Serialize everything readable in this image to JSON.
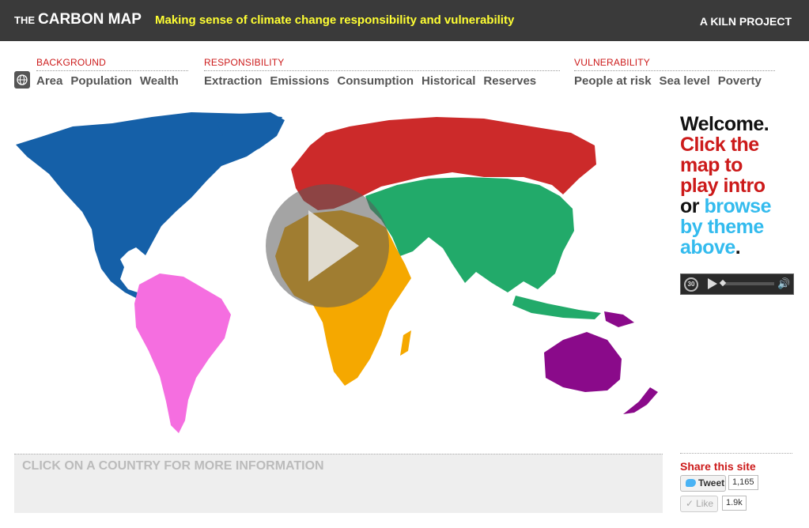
{
  "header": {
    "the": "THE",
    "title": "CARBON MAP",
    "tagline": "Making sense of climate change responsibility and vulnerability",
    "credit": "A KILN PROJECT"
  },
  "nav": {
    "background": {
      "title": "BACKGROUND",
      "items": [
        "Area",
        "Population",
        "Wealth"
      ]
    },
    "responsibility": {
      "title": "RESPONSIBILITY",
      "items": [
        "Extraction",
        "Emissions",
        "Consumption",
        "Historical",
        "Reserves"
      ]
    },
    "vulnerability": {
      "title": "VULNERABILITY",
      "items": [
        "People at risk",
        "Sea level",
        "Poverty"
      ]
    }
  },
  "welcome": {
    "l1": "Welcome.",
    "l2": "Click the",
    "l3": "map to",
    "l4": "play intro",
    "l5a": "or",
    "l5b": "browse",
    "l6": "by theme",
    "l7": "above",
    "l7end": "."
  },
  "player": {
    "rewind_label": "30"
  },
  "info": {
    "text": "CLICK ON A COUNTRY FOR MORE INFORMATION"
  },
  "share": {
    "title": "Share this site",
    "tweet_label": "Tweet",
    "tweet_count": "1,165",
    "like_label": "Like",
    "like_count": "1.9k"
  },
  "colors": {
    "north_america": "#1560a8",
    "south_america": "#f56ee0",
    "europe_russia": "#cc2a2a",
    "asia": "#22aa6a",
    "africa": "#f5a800",
    "oceania": "#8a0a8a",
    "accent_red": "#cc1a1a",
    "accent_blue": "#33bbee"
  },
  "icons": [
    "globe-icon",
    "play-icon",
    "rewind-30-icon",
    "volume-icon",
    "twitter-bird-icon",
    "like-check-icon"
  ]
}
